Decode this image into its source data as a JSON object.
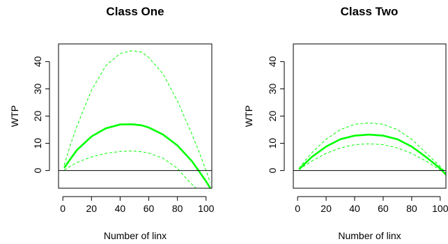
{
  "chart_data": [
    {
      "type": "line",
      "title": "Class One",
      "xlabel": "Number of linx",
      "ylabel": "WTP",
      "xlim": [
        -3,
        104
      ],
      "ylim": [
        -6.5,
        46.5
      ],
      "x_ticks": [
        0,
        20,
        40,
        60,
        80,
        100
      ],
      "y_ticks": [
        0,
        10,
        20,
        30,
        40
      ],
      "reference_line_y": 0,
      "series": [
        {
          "role": "estimate",
          "color": "#00ff00",
          "style": "solid",
          "x": [
            1,
            5,
            10,
            20,
            30,
            40,
            48,
            55,
            60,
            70,
            80,
            90,
            95,
            100,
            103
          ],
          "y": [
            1.0,
            4.0,
            7.6,
            12.5,
            15.5,
            16.9,
            17.0,
            16.6,
            15.8,
            13.2,
            9.2,
            3.5,
            -0.2,
            -4.0,
            -6.5
          ]
        },
        {
          "role": "upper-bound",
          "color": "#00ff00",
          "style": "dashed",
          "x": [
            1,
            5,
            10,
            20,
            30,
            40,
            48,
            55,
            60,
            70,
            80,
            90,
            95,
            100,
            103
          ],
          "y": [
            2.0,
            9.0,
            16.5,
            29.5,
            38.5,
            43.0,
            44.0,
            43.5,
            41.5,
            35.5,
            25.5,
            13.5,
            7.0,
            0.0,
            -4.5
          ]
        },
        {
          "role": "lower-bound",
          "color": "#00ff00",
          "style": "dashed",
          "x": [
            1,
            5,
            10,
            20,
            30,
            40,
            48,
            55,
            60,
            70,
            80,
            88,
            90,
            93
          ],
          "y": [
            0.2,
            1.5,
            3.0,
            5.0,
            6.3,
            7.0,
            7.2,
            6.9,
            6.4,
            4.5,
            0.8,
            -4.0,
            -5.0,
            -6.5
          ]
        }
      ]
    },
    {
      "type": "line",
      "title": "Class Two",
      "xlabel": "Number of linx",
      "ylabel": "WTP",
      "xlim": [
        -3,
        104
      ],
      "ylim": [
        -6.5,
        46.5
      ],
      "x_ticks": [
        0,
        20,
        40,
        60,
        80,
        100
      ],
      "y_ticks": [
        0,
        10,
        20,
        30,
        40
      ],
      "reference_line_y": 0,
      "series": [
        {
          "role": "estimate",
          "color": "#00ff00",
          "style": "solid",
          "x": [
            1,
            5,
            10,
            20,
            30,
            40,
            50,
            60,
            70,
            80,
            90,
            100,
            104
          ],
          "y": [
            0.5,
            2.5,
            5.0,
            8.8,
            11.5,
            12.8,
            13.2,
            12.8,
            11.5,
            8.8,
            5.0,
            0.8,
            -1.5
          ]
        },
        {
          "role": "upper-bound",
          "color": "#00ff00",
          "style": "dashed",
          "x": [
            1,
            5,
            10,
            20,
            30,
            40,
            50,
            60,
            70,
            80,
            90,
            100,
            104
          ],
          "y": [
            0.8,
            3.5,
            6.5,
            11.5,
            15.0,
            17.0,
            17.5,
            17.0,
            15.0,
            11.5,
            6.5,
            1.5,
            -0.8
          ]
        },
        {
          "role": "lower-bound",
          "color": "#00ff00",
          "style": "dashed",
          "x": [
            1,
            5,
            10,
            20,
            30,
            40,
            50,
            60,
            70,
            80,
            90,
            100,
            104
          ],
          "y": [
            0.3,
            1.8,
            3.5,
            6.3,
            8.3,
            9.5,
            9.8,
            9.5,
            8.3,
            6.3,
            3.5,
            0.2,
            -1.5
          ]
        }
      ]
    }
  ]
}
